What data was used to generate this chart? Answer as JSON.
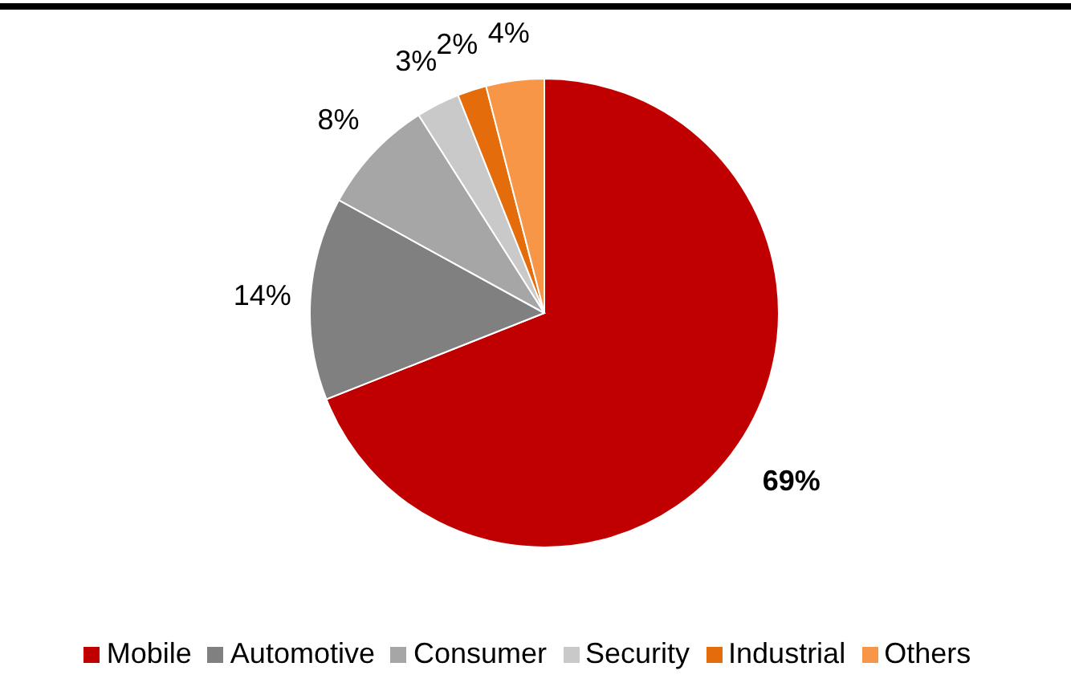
{
  "chart_data": {
    "type": "pie",
    "categories": [
      "Mobile",
      "Automotive",
      "Consumer",
      "Security",
      "Industrial",
      "Others"
    ],
    "values": [
      69,
      14,
      8,
      3,
      2,
      4
    ],
    "colors": [
      "#c00000",
      "#808080",
      "#a6a6a6",
      "#c9c9c9",
      "#e46c0a",
      "#f79646"
    ],
    "value_labels": [
      "69%",
      "14%",
      "8%",
      "3%",
      "2%",
      "4%"
    ],
    "legend": "bottom"
  }
}
